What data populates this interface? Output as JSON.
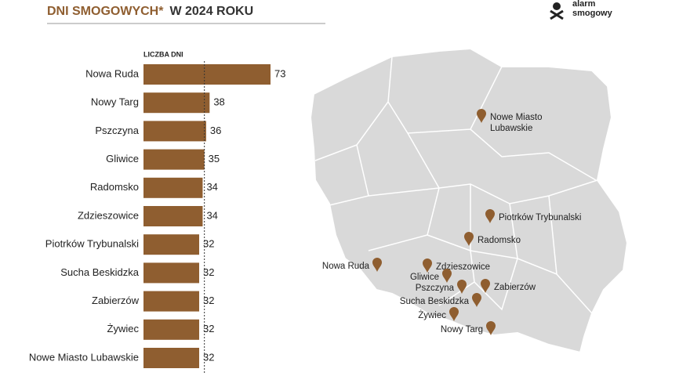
{
  "header": {
    "logo": [
      "alarm",
      "smogowy"
    ]
  },
  "chart_data": {
    "type": "bar",
    "orientation": "horizontal",
    "title": {
      "highlight": "DNI SMOGOWYCH*",
      "rest": "W 2024 ROKU"
    },
    "axis_label": "LICZBA DNI",
    "categories": [
      "Nowa Ruda",
      "Nowy Targ",
      "Pszczyna",
      "Gliwice",
      "Radomsko",
      "Zdzieszowice",
      "Piotrków Trybunalski",
      "Sucha Beskidzka",
      "Zabierzów",
      "Żywiec",
      "Nowe Miasto Lubawskie"
    ],
    "values": [
      73,
      38,
      36,
      35,
      34,
      34,
      32,
      32,
      32,
      32,
      32
    ],
    "color": "#8f5e30",
    "xlim": [
      0,
      73
    ],
    "reference_line": 35
  },
  "map": {
    "places": [
      {
        "lines": [
          "Nowe Miasto",
          "Lubawskie"
        ]
      },
      {
        "lines": [
          "Piotrków Trybunalski"
        ]
      },
      {
        "lines": [
          "Radomsko"
        ]
      },
      {
        "lines": [
          "Nowa Ruda"
        ]
      },
      {
        "lines": [
          "Zdzieszowice"
        ]
      },
      {
        "lines": [
          "Gliwice"
        ]
      },
      {
        "lines": [
          "Pszczyna"
        ]
      },
      {
        "lines": [
          "Zabierzów"
        ]
      },
      {
        "lines": [
          "Sucha Beskidzka"
        ]
      },
      {
        "lines": [
          "Żywiec"
        ]
      },
      {
        "lines": [
          "Nowy Targ"
        ]
      }
    ]
  }
}
